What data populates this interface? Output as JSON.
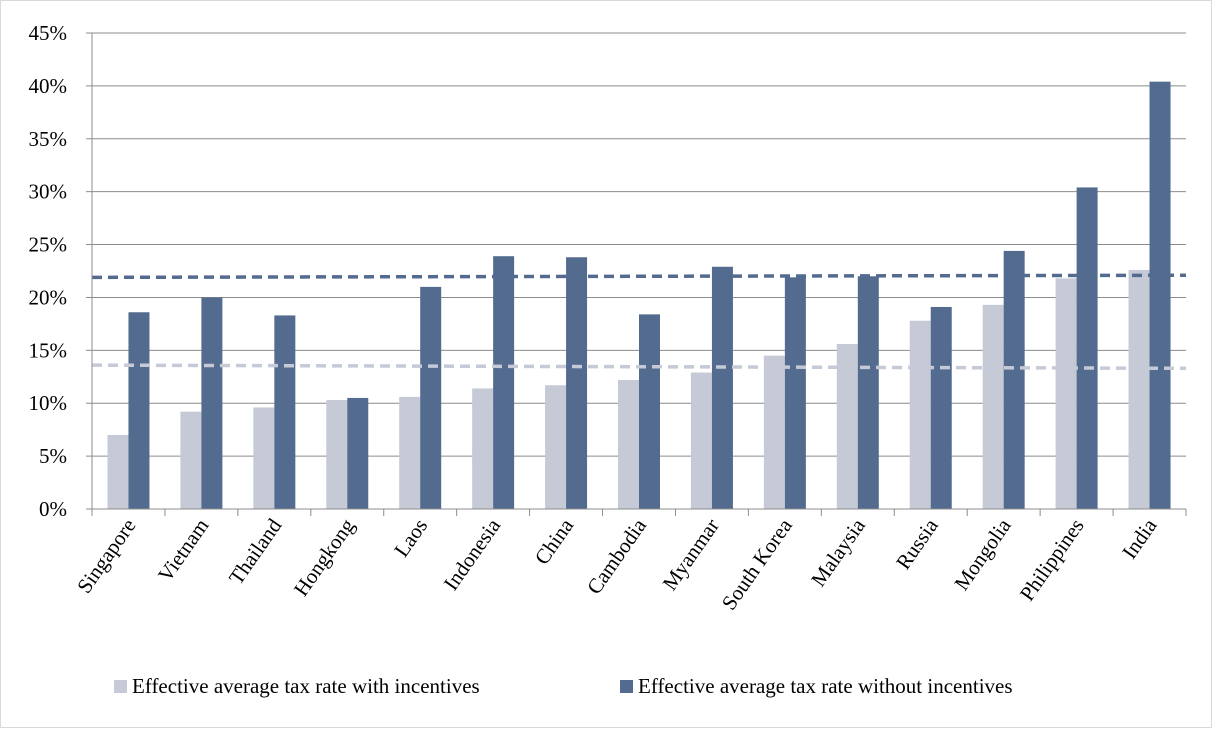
{
  "chart_data": {
    "type": "bar",
    "title": "",
    "xlabel": "",
    "ylabel": "",
    "ylim": [
      0,
      45
    ],
    "yticks": [
      0,
      5,
      10,
      15,
      20,
      25,
      30,
      35,
      40,
      45
    ],
    "ytick_labels": [
      "0%",
      "5%",
      "10%",
      "15%",
      "20%",
      "25%",
      "30%",
      "35%",
      "40%",
      "45%"
    ],
    "grid": true,
    "legend_position": "bottom",
    "categories": [
      "Singapore",
      "Vietnam",
      "Thailand",
      "Hongkong",
      "Laos",
      "Indonesia",
      "China",
      "Cambodia",
      "Myanmar",
      "South Korea",
      "Malaysia",
      "Russia",
      "Mongolia",
      "Philippines",
      "India"
    ],
    "series": [
      {
        "name": "Effective average tax rate with incentives",
        "color": "#c5cad6",
        "values": [
          7.0,
          9.2,
          9.6,
          10.3,
          10.6,
          11.4,
          11.7,
          12.2,
          12.9,
          14.5,
          15.6,
          17.8,
          19.3,
          21.8,
          22.6
        ]
      },
      {
        "name": "Effective average tax rate without incentives",
        "color": "#536b8e",
        "values": [
          18.6,
          20.0,
          18.3,
          10.5,
          21.0,
          23.9,
          23.8,
          18.4,
          22.9,
          21.9,
          22.0,
          19.1,
          24.4,
          30.4,
          40.4
        ]
      }
    ],
    "trendlines": [
      {
        "series": "Effective average tax rate with incentives",
        "style": "dashed",
        "color": "#c5cad6",
        "start": 13.6,
        "end": 13.3
      },
      {
        "series": "Effective average tax rate without incentives",
        "style": "dashed",
        "color": "#536b8e",
        "start": 21.9,
        "end": 22.1
      }
    ]
  }
}
